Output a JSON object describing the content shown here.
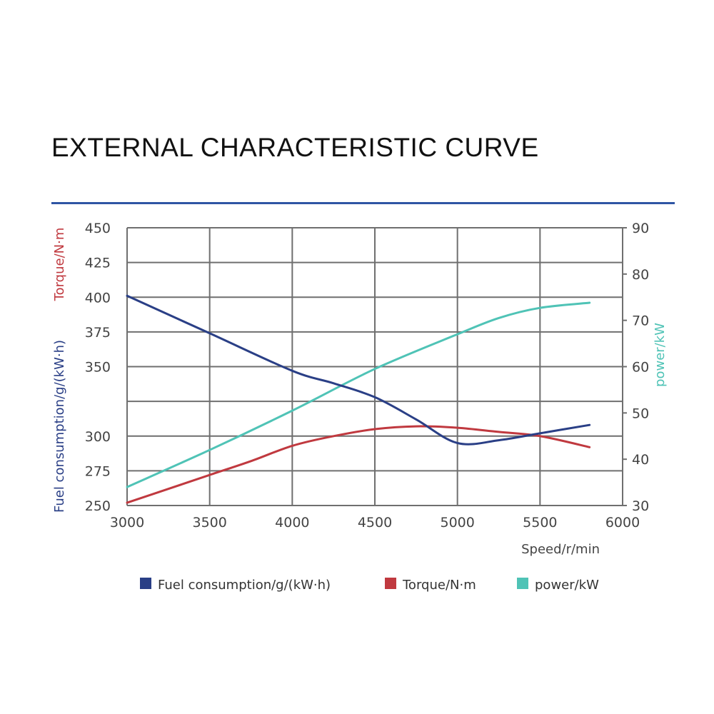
{
  "page": {
    "title": "EXTERNAL CHARACTERISTIC CURVE",
    "rule_color": "#2e55a4"
  },
  "chart_data": {
    "type": "line",
    "title": "EXTERNAL CHARACTERISTIC CURVE",
    "xlabel": "Speed/r/min",
    "ylabel_left_bottom": "Fuel consumption/g/(kW·h)",
    "ylabel_left_top": "Torque/N·m",
    "ylabel_right": "power/kW",
    "xlim": [
      3000,
      6000
    ],
    "ylim_left": [
      250,
      450
    ],
    "ylim_right": [
      30,
      90
    ],
    "grid": true,
    "legend_position": "bottom",
    "x_ticks": [
      "3000",
      "3500",
      "4000",
      "4500",
      "5000",
      "5500",
      "6000"
    ],
    "y_left_ticks": [
      "250",
      "275",
      "300",
      "325",
      "350",
      "375",
      "400",
      "425",
      "450"
    ],
    "y_right_ticks": [
      "30",
      "40",
      "50",
      "60",
      "70",
      "80",
      "90"
    ],
    "y_left_tick_values": [
      250,
      275,
      300,
      325,
      350,
      375,
      400,
      425,
      450
    ],
    "y_left_tick_labels": [
      "250",
      "275",
      "300",
      "",
      "350",
      "375",
      "400",
      "425",
      "450"
    ],
    "series": [
      {
        "name": "Fuel consumption/g/(kW·h)",
        "axis": "left",
        "color": "#2a3f86",
        "x": [
          3000,
          3500,
          4000,
          4250,
          4500,
          4750,
          5000,
          5250,
          5500,
          5800
        ],
        "y": [
          401,
          374,
          347,
          338,
          328,
          312,
          295,
          297,
          302,
          308
        ]
      },
      {
        "name": "Torque/N·m",
        "axis": "left",
        "color": "#c0393f",
        "x": [
          3000,
          3250,
          3500,
          3750,
          4000,
          4250,
          4500,
          4750,
          5000,
          5250,
          5500,
          5800
        ],
        "y": [
          252,
          262,
          272,
          282,
          293,
          300,
          305,
          307,
          306,
          303,
          300,
          292
        ]
      },
      {
        "name": "power/kW",
        "axis": "right",
        "color": "#4fc3b6",
        "x": [
          3000,
          3500,
          4000,
          4500,
          5000,
          5250,
          5500,
          5800
        ],
        "y": [
          34,
          42,
          50.5,
          59.5,
          67,
          70.5,
          72.7,
          73.8
        ]
      }
    ]
  }
}
